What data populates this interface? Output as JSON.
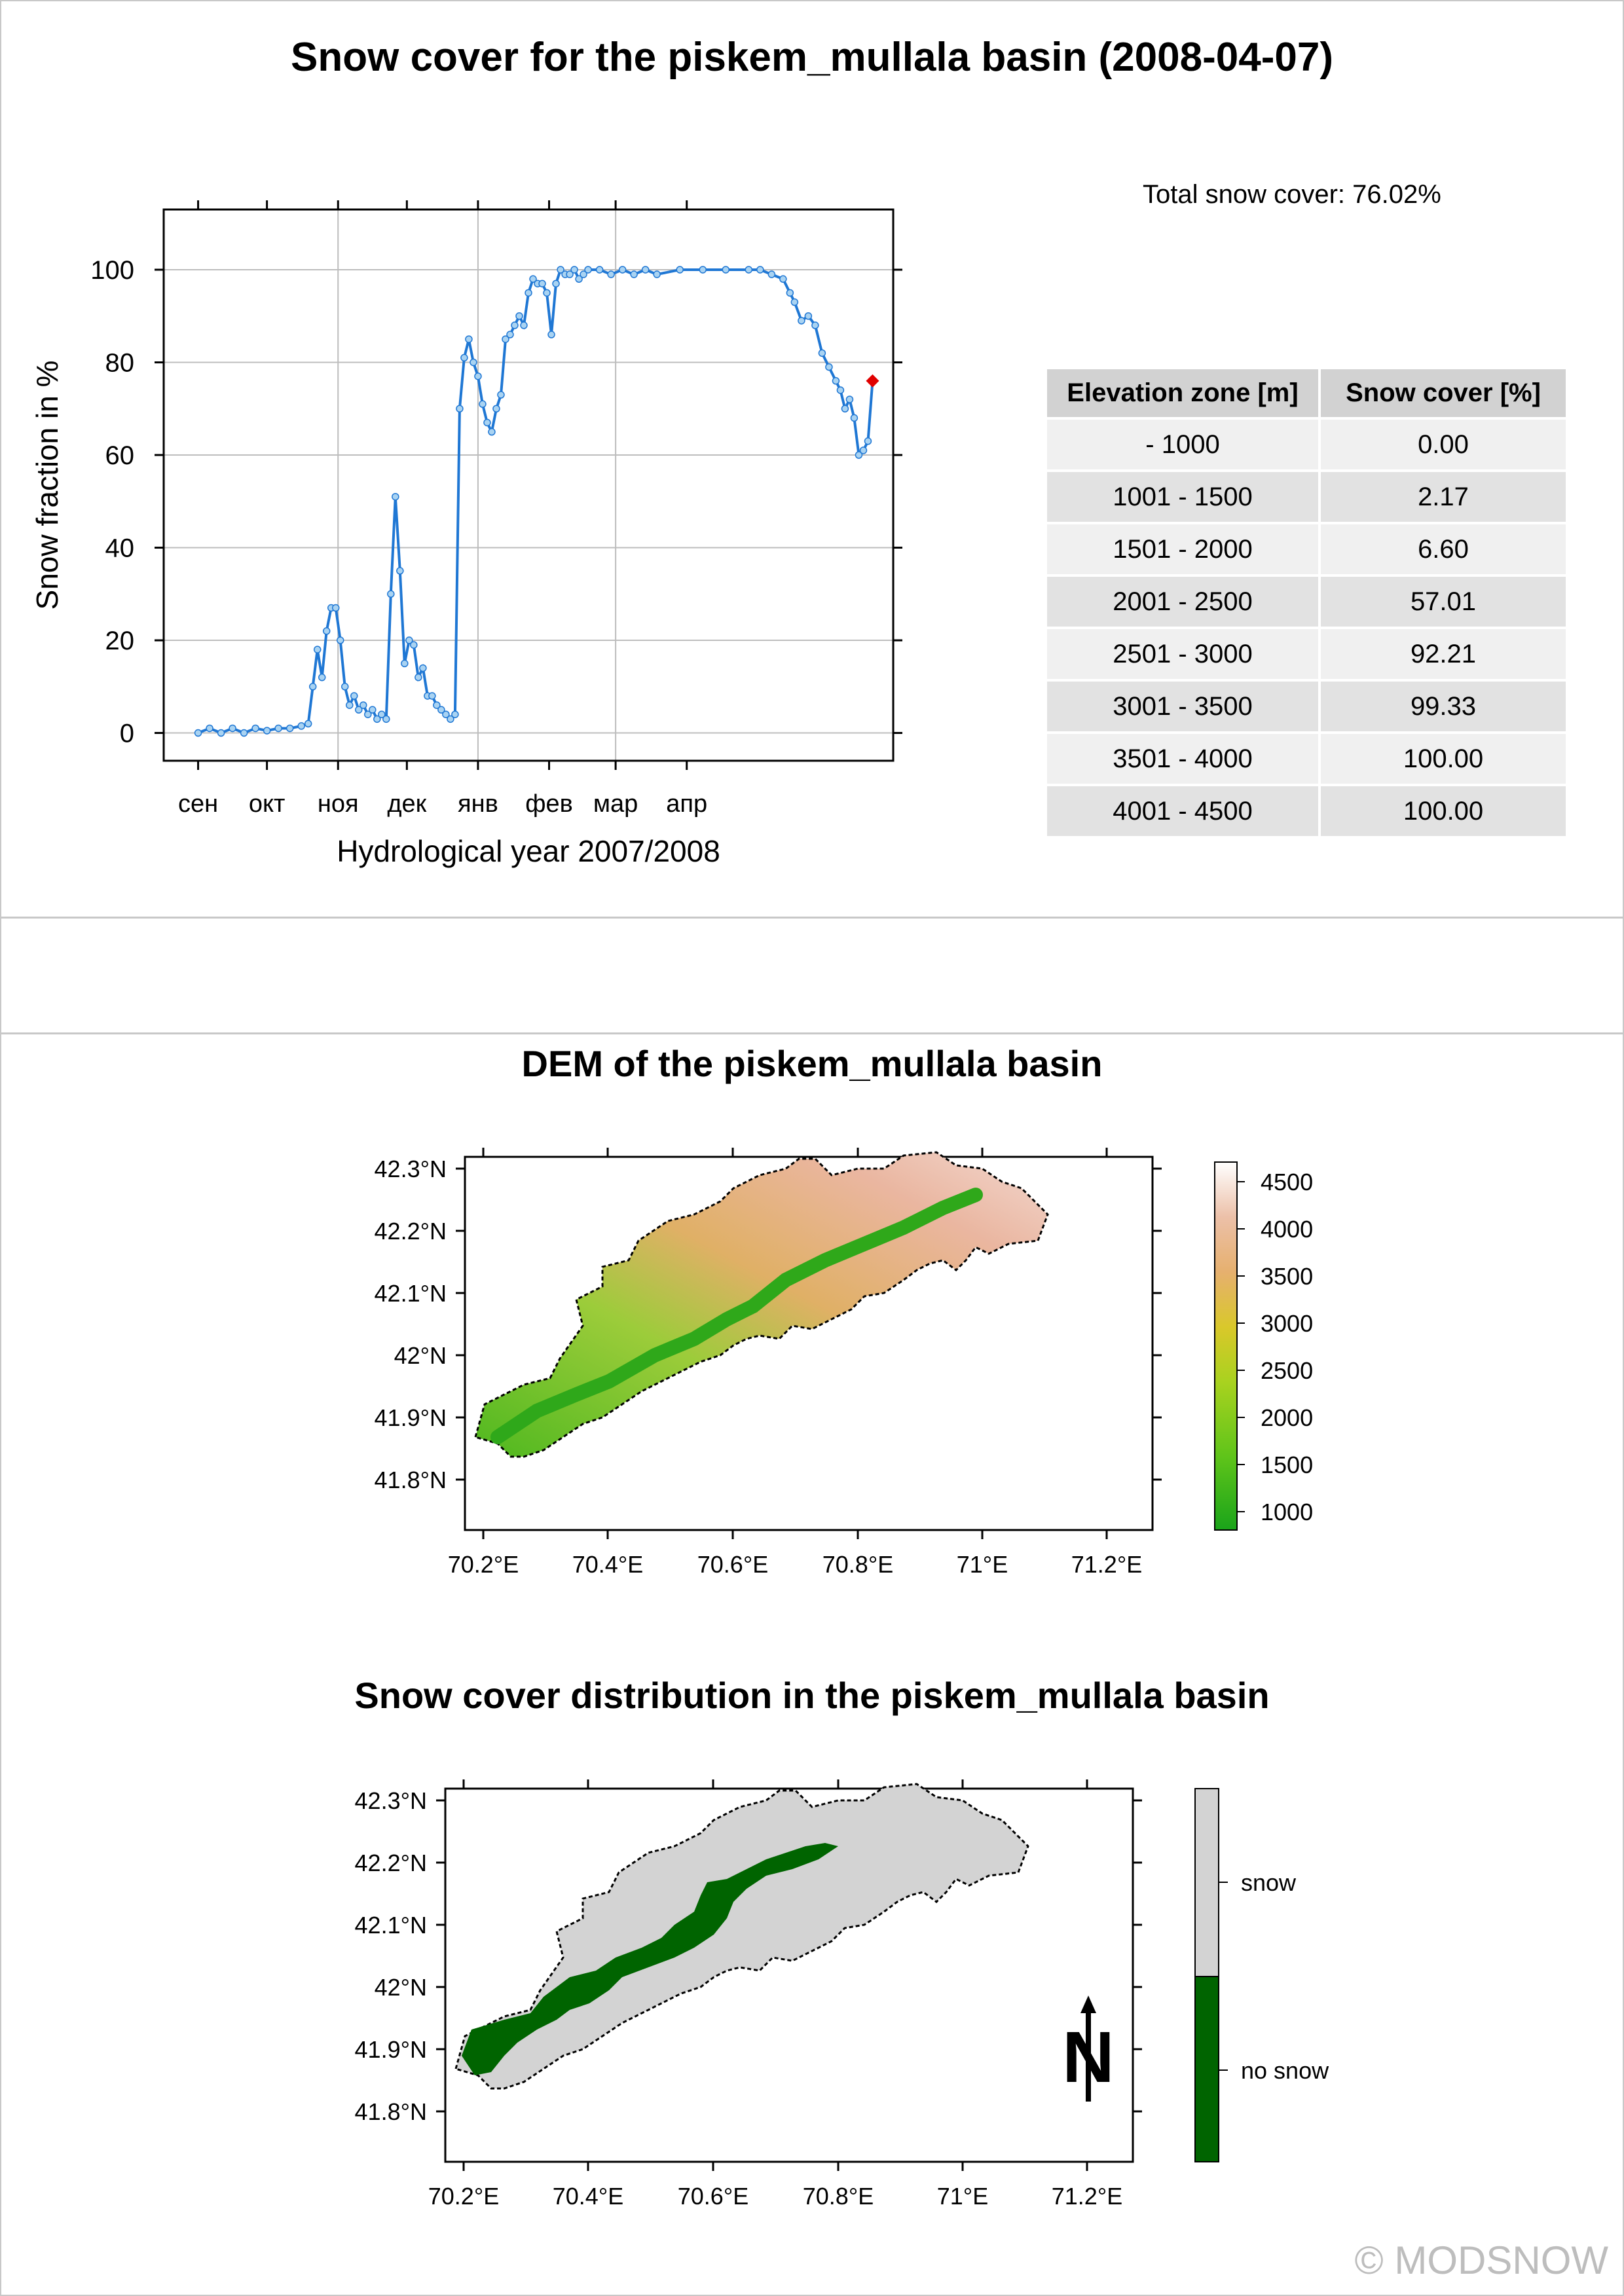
{
  "header": {
    "title": "Snow cover for the piskem_mullala basin (2008-04-07)"
  },
  "summary": {
    "total_snow_cover": "Total snow cover: 76.02%"
  },
  "table": {
    "headers": [
      "Elevation zone [m]",
      "Snow cover [%]"
    ],
    "rows": [
      [
        "- 1000",
        "0.00"
      ],
      [
        "1001 - 1500",
        "2.17"
      ],
      [
        "1501 - 2000",
        "6.60"
      ],
      [
        "2001 - 2500",
        "57.01"
      ],
      [
        "2501 - 3000",
        "92.21"
      ],
      [
        "3001 - 3500",
        "99.33"
      ],
      [
        "3501 - 4000",
        "100.00"
      ],
      [
        "4001 - 4500",
        "100.00"
      ]
    ]
  },
  "dem": {
    "title": "DEM of the piskem_mullala basin",
    "legend_ticks": [
      "4500",
      "4000",
      "3500",
      "3000",
      "2500",
      "2000",
      "1500",
      "1000"
    ]
  },
  "snowmap": {
    "title": "Snow cover distribution in the piskem_mullala basin",
    "legend": [
      "snow",
      "no snow"
    ],
    "north_label": "N"
  },
  "map_axes": {
    "lat_ticks": [
      "42.3°N",
      "42.2°N",
      "42.1°N",
      "42°N",
      "41.9°N",
      "41.8°N"
    ],
    "lon_ticks": [
      "70.2°E",
      "70.4°E",
      "70.6°E",
      "70.8°E",
      "71°E",
      "71.2°E"
    ]
  },
  "colors": {
    "series": "#1f77d4",
    "marker_fill": "#a9d3f2",
    "current": "#e00000",
    "snow": "#d3d3d3",
    "no_snow": "#006400"
  },
  "footer": {
    "copyright": "© MODSNOW"
  },
  "chart_data": {
    "type": "line",
    "xlabel": "Hydrological year 2007/2008",
    "ylabel": "Snow fraction in %",
    "ylim": [
      0,
      110
    ],
    "yticks": [
      0,
      20,
      40,
      60,
      80,
      100
    ],
    "month_labels": [
      "сен",
      "окт",
      "ноя",
      "дек",
      "янв",
      "фев",
      "мар",
      "апр"
    ],
    "x_unit": "day of hydrological year (0 = 1 Sep 2007)",
    "grid": true,
    "series": [
      {
        "points": [
          [
            0,
            0
          ],
          [
            5,
            1
          ],
          [
            10,
            0
          ],
          [
            15,
            1
          ],
          [
            20,
            0
          ],
          [
            25,
            1
          ],
          [
            30,
            0.5
          ],
          [
            35,
            1
          ],
          [
            40,
            1
          ],
          [
            45,
            1.5
          ],
          [
            48,
            2
          ],
          [
            50,
            10
          ],
          [
            52,
            18
          ],
          [
            54,
            12
          ],
          [
            56,
            22
          ],
          [
            58,
            27
          ],
          [
            60,
            27
          ],
          [
            62,
            20
          ],
          [
            64,
            10
          ],
          [
            66,
            6
          ],
          [
            68,
            8
          ],
          [
            70,
            5
          ],
          [
            72,
            6
          ],
          [
            74,
            4
          ],
          [
            76,
            5
          ],
          [
            78,
            3
          ],
          [
            80,
            4
          ],
          [
            82,
            3
          ],
          [
            84,
            30
          ],
          [
            86,
            51
          ],
          [
            88,
            35
          ],
          [
            90,
            15
          ],
          [
            92,
            20
          ],
          [
            94,
            19
          ],
          [
            96,
            12
          ],
          [
            98,
            14
          ],
          [
            100,
            8
          ],
          [
            102,
            8
          ],
          [
            104,
            6
          ],
          [
            106,
            5
          ],
          [
            108,
            4
          ],
          [
            110,
            3
          ],
          [
            112,
            4
          ],
          [
            114,
            70
          ],
          [
            116,
            81
          ],
          [
            118,
            85
          ],
          [
            120,
            80
          ],
          [
            122,
            77
          ],
          [
            124,
            71
          ],
          [
            126,
            67
          ],
          [
            128,
            65
          ],
          [
            130,
            70
          ],
          [
            132,
            73
          ],
          [
            134,
            85
          ],
          [
            136,
            86
          ],
          [
            138,
            88
          ],
          [
            140,
            90
          ],
          [
            142,
            88
          ],
          [
            144,
            95
          ],
          [
            146,
            98
          ],
          [
            148,
            97
          ],
          [
            150,
            97
          ],
          [
            152,
            95
          ],
          [
            154,
            86
          ],
          [
            156,
            97
          ],
          [
            158,
            100
          ],
          [
            160,
            99
          ],
          [
            162,
            99
          ],
          [
            164,
            100
          ],
          [
            166,
            98
          ],
          [
            168,
            99
          ],
          [
            170,
            100
          ],
          [
            175,
            100
          ],
          [
            180,
            99
          ],
          [
            185,
            100
          ],
          [
            190,
            99
          ],
          [
            195,
            100
          ],
          [
            200,
            99
          ],
          [
            210,
            100
          ],
          [
            220,
            100
          ],
          [
            230,
            100
          ],
          [
            240,
            100
          ],
          [
            245,
            100
          ],
          [
            250,
            99
          ],
          [
            255,
            98
          ],
          [
            258,
            95
          ],
          [
            260,
            93
          ],
          [
            263,
            89
          ],
          [
            266,
            90
          ],
          [
            269,
            88
          ],
          [
            272,
            82
          ],
          [
            275,
            79
          ],
          [
            278,
            76
          ],
          [
            280,
            74
          ],
          [
            282,
            70
          ],
          [
            284,
            72
          ],
          [
            286,
            68
          ],
          [
            288,
            60
          ],
          [
            290,
            61
          ],
          [
            292,
            63
          ],
          [
            294,
            76
          ]
        ],
        "current": [
          294,
          76
        ]
      }
    ]
  }
}
